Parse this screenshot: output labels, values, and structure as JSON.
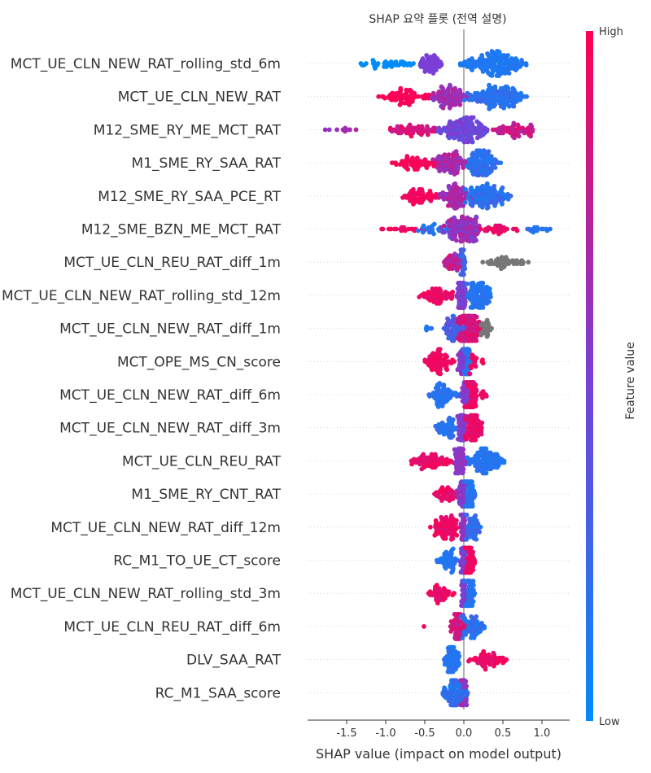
{
  "chart_data": {
    "type": "scatter",
    "title": "SHAP 요약 플롯 (전역 설명)",
    "xlabel": "SHAP value (impact on model output)",
    "xlim": [
      -1.98,
      1.36
    ],
    "xticks": [
      -1.5,
      -1.0,
      -0.5,
      0.0,
      0.5,
      1.0
    ],
    "xtick_labels": [
      "-1.5",
      "-1.0",
      "-0.5",
      "0.0",
      "0.5",
      "1.0"
    ],
    "colorbar": {
      "label": "Feature value",
      "high": "High",
      "low": "Low",
      "low_color": "#008bfb",
      "high_color": "#ff0052",
      "missing_color": "#777777"
    },
    "grid": false,
    "features": [
      {
        "name": "MCT_UE_CLN_NEW_RAT_rolling_std_6m",
        "segments": [
          [
            -1.45,
            -0.55,
            0.0,
            0.0,
            40
          ],
          [
            -0.6,
            -0.25,
            0.5,
            0.5,
            60
          ],
          [
            -0.05,
            0.85,
            0.1,
            0.15,
            170
          ]
        ]
      },
      {
        "name": "MCT_UE_CLN_NEW_RAT",
        "segments": [
          [
            -1.15,
            -0.35,
            0.95,
            1.0,
            70
          ],
          [
            -0.45,
            0.1,
            0.55,
            0.75,
            90
          ],
          [
            0.0,
            0.85,
            0.1,
            0.25,
            150
          ]
        ]
      },
      {
        "name": "M12_SME_RY_ME_MCT_RAT",
        "segments": [
          [
            -1.85,
            -1.2,
            0.55,
            0.7,
            10
          ],
          [
            -1.0,
            -0.3,
            0.75,
            0.95,
            60
          ],
          [
            -0.35,
            0.35,
            0.35,
            0.55,
            150
          ],
          [
            0.25,
            0.95,
            0.7,
            0.9,
            60
          ]
        ]
      },
      {
        "name": "M1_SME_RY_SAA_RAT",
        "segments": [
          [
            -1.0,
            -0.3,
            0.95,
            1.0,
            60
          ],
          [
            -0.45,
            0.1,
            0.55,
            0.8,
            90
          ],
          [
            0.0,
            0.5,
            0.1,
            0.25,
            120
          ]
        ]
      },
      {
        "name": "M12_SME_RY_SAA_PCE_RT",
        "segments": [
          [
            -0.85,
            -0.3,
            0.9,
            1.0,
            60
          ],
          [
            -0.35,
            0.15,
            0.55,
            0.8,
            90
          ],
          [
            0.0,
            0.62,
            0.1,
            0.25,
            120
          ]
        ]
      },
      {
        "name": "M12_SME_BZN_ME_MCT_RAT",
        "segments": [
          [
            -1.15,
            -0.4,
            0.9,
            1.0,
            20
          ],
          [
            -0.6,
            -0.1,
            0.1,
            0.2,
            25
          ],
          [
            -0.3,
            0.3,
            0.45,
            0.75,
            140
          ],
          [
            0.2,
            0.7,
            0.85,
            1.0,
            30
          ],
          [
            0.6,
            1.2,
            0.1,
            0.2,
            15
          ]
        ]
      },
      {
        "name": "MCT_UE_CLN_REU_RAT_diff_1m",
        "segments": [
          [
            -0.28,
            0.05,
            0.55,
            0.85,
            50
          ],
          [
            -0.05,
            0.02,
            0.2,
            0.3,
            40
          ],
          [
            0.18,
            0.9,
            -1,
            -1,
            45
          ]
        ]
      },
      {
        "name": "MCT_UE_CLN_NEW_RAT_rolling_std_12m",
        "segments": [
          [
            -0.58,
            -0.1,
            0.85,
            1.0,
            60
          ],
          [
            -0.1,
            0.05,
            0.4,
            0.6,
            80
          ],
          [
            0.0,
            0.38,
            0.1,
            0.2,
            100
          ]
        ]
      },
      {
        "name": "MCT_UE_CLN_NEW_RAT_diff_1m",
        "segments": [
          [
            -0.5,
            -0.35,
            0.1,
            0.2,
            5
          ],
          [
            -0.3,
            0.05,
            0.2,
            0.4,
            70
          ],
          [
            -0.1,
            0.25,
            0.75,
            0.95,
            150
          ],
          [
            0.2,
            0.38,
            -1,
            -1,
            25
          ]
        ]
      },
      {
        "name": "MCT_OPE_MS_CN_score",
        "segments": [
          [
            -0.52,
            -0.1,
            0.9,
            1.0,
            70
          ],
          [
            -0.1,
            0.05,
            0.45,
            0.6,
            40
          ],
          [
            0.0,
            0.1,
            0.1,
            0.2,
            50
          ],
          [
            0.05,
            0.28,
            0.9,
            1.0,
            15
          ]
        ]
      },
      {
        "name": "MCT_UE_CLN_NEW_RAT_diff_6m",
        "segments": [
          [
            -0.5,
            -0.05,
            0.1,
            0.2,
            70
          ],
          [
            -0.05,
            0.08,
            0.4,
            0.6,
            40
          ],
          [
            0.0,
            0.18,
            0.85,
            1.0,
            90
          ],
          [
            0.18,
            0.32,
            0.9,
            1.0,
            8
          ]
        ]
      },
      {
        "name": "MCT_UE_CLN_NEW_RAT_diff_3m",
        "segments": [
          [
            -0.38,
            -0.05,
            0.1,
            0.25,
            50
          ],
          [
            -0.1,
            0.05,
            0.45,
            0.6,
            50
          ],
          [
            0.0,
            0.25,
            0.85,
            1.0,
            80
          ]
        ]
      },
      {
        "name": "MCT_UE_CLN_REU_RAT",
        "segments": [
          [
            -0.7,
            -0.1,
            0.85,
            1.0,
            70
          ],
          [
            -0.15,
            0.05,
            0.5,
            0.65,
            60
          ],
          [
            0.0,
            0.55,
            0.1,
            0.2,
            110
          ]
        ]
      },
      {
        "name": "M1_SME_RY_CNT_RAT",
        "segments": [
          [
            -0.38,
            -0.05,
            0.85,
            1.0,
            45
          ],
          [
            -0.1,
            0.05,
            0.45,
            0.65,
            50
          ],
          [
            0.0,
            0.15,
            0.1,
            0.2,
            80
          ]
        ]
      },
      {
        "name": "MCT_UE_CLN_NEW_RAT_diff_12m",
        "segments": [
          [
            -0.45,
            0.0,
            0.85,
            1.0,
            80
          ],
          [
            -0.05,
            0.05,
            0.5,
            0.65,
            40
          ],
          [
            0.0,
            0.25,
            0.1,
            0.3,
            50
          ]
        ]
      },
      {
        "name": "RC_M1_TO_UE_CT_score",
        "segments": [
          [
            -0.35,
            -0.05,
            0.1,
            0.2,
            50
          ],
          [
            -0.05,
            0.05,
            0.4,
            0.6,
            50
          ],
          [
            0.0,
            0.15,
            0.85,
            1.0,
            55
          ]
        ]
      },
      {
        "name": "MCT_UE_CLN_NEW_RAT_rolling_std_3m",
        "segments": [
          [
            -0.48,
            -0.05,
            0.85,
            1.0,
            45
          ],
          [
            -0.05,
            0.05,
            0.45,
            0.6,
            50
          ],
          [
            0.0,
            0.15,
            0.1,
            0.2,
            60
          ]
        ]
      },
      {
        "name": "MCT_UE_CLN_REU_RAT_diff_6m",
        "segments": [
          [
            -0.52,
            -0.5,
            0.9,
            1.0,
            1
          ],
          [
            -0.18,
            0.05,
            0.7,
            0.95,
            70
          ],
          [
            -0.05,
            0.3,
            0.1,
            0.3,
            60
          ]
        ]
      },
      {
        "name": "DLV_SAA_RAT",
        "segments": [
          [
            -0.28,
            -0.02,
            0.1,
            0.2,
            70
          ],
          [
            0.05,
            0.58,
            0.85,
            1.0,
            60
          ]
        ]
      },
      {
        "name": "RC_M1_SAA_score",
        "segments": [
          [
            -0.28,
            0.08,
            0.1,
            0.25,
            120
          ],
          [
            -0.05,
            0.05,
            0.45,
            0.7,
            30
          ]
        ]
      }
    ]
  }
}
